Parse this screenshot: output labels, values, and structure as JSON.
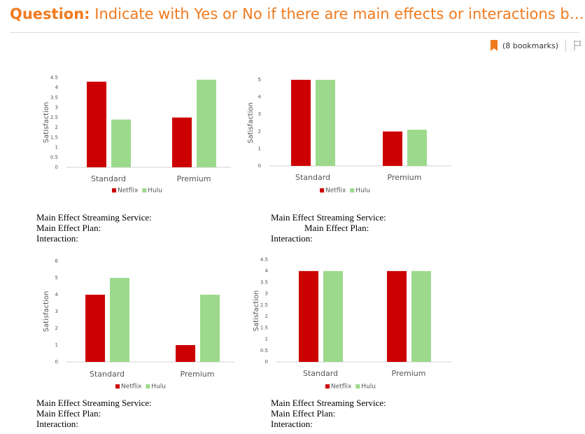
{
  "header": {
    "label": "Question:",
    "title": "Indicate with Yes or No if there are main effects or interactions b…",
    "bookmarks": "(8 bookmarks)"
  },
  "chart_data": [
    {
      "type": "bar",
      "ylabel": "Satisfaction",
      "categories": [
        "Standard",
        "Premium"
      ],
      "series": [
        {
          "name": "Netflix",
          "color": "#cc0000",
          "values": [
            4.3,
            2.5
          ]
        },
        {
          "name": "Hulu",
          "color": "#9cd98c",
          "values": [
            2.4,
            4.4
          ]
        }
      ],
      "ylim": [
        0,
        4.5
      ],
      "yticks": [
        0,
        0.5,
        1,
        1.5,
        2,
        2.5,
        3,
        3.5,
        4,
        4.5
      ]
    },
    {
      "type": "bar",
      "ylabel": "Satisfaction",
      "categories": [
        "Standard",
        "Premium"
      ],
      "series": [
        {
          "name": "Netflix",
          "color": "#cc0000",
          "values": [
            5,
            2
          ]
        },
        {
          "name": "Hulu",
          "color": "#9cd98c",
          "values": [
            5,
            2.1
          ]
        }
      ],
      "ylim": [
        0,
        5
      ],
      "yticks": [
        0,
        1,
        2,
        3,
        4,
        5
      ]
    },
    {
      "type": "bar",
      "ylabel": "Satisfaction",
      "categories": [
        "Standard",
        "Premium"
      ],
      "series": [
        {
          "name": "Netflix",
          "color": "#cc0000",
          "values": [
            4,
            1
          ]
        },
        {
          "name": "Hulu",
          "color": "#9cd98c",
          "values": [
            5,
            4
          ]
        }
      ],
      "ylim": [
        0,
        6
      ],
      "yticks": [
        0,
        1,
        2,
        3,
        4,
        5,
        6
      ]
    },
    {
      "type": "bar",
      "ylabel": "Satisfaction",
      "categories": [
        "Standard",
        "Premium"
      ],
      "series": [
        {
          "name": "Netflix",
          "color": "#cc0000",
          "values": [
            4,
            4
          ]
        },
        {
          "name": "Hulu",
          "color": "#9cd98c",
          "values": [
            4,
            4
          ]
        }
      ],
      "ylim": [
        0,
        4.5
      ],
      "yticks": [
        0,
        0.5,
        1,
        1.5,
        2,
        2.5,
        3,
        3.5,
        4,
        4.5
      ]
    }
  ],
  "prompts": [
    [
      "Main Effect Streaming Service:",
      "Main Effect Plan:",
      "Interaction:"
    ],
    [
      "Main Effect Streaming Service:",
      "Main Effect Plan:",
      "Interaction:"
    ],
    [
      "Main Effect Streaming Service:",
      "Main Effect Plan:",
      "Interaction:"
    ],
    [
      "Main Effect Streaming Service:",
      "Main Effect Plan:",
      "Interaction:"
    ]
  ]
}
